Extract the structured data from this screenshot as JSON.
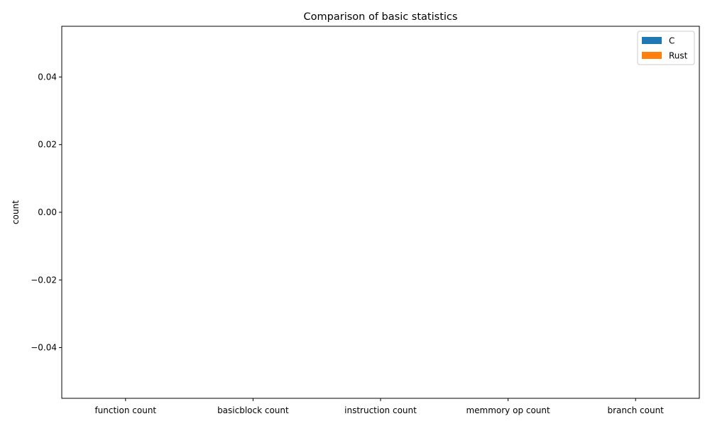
{
  "chart_data": {
    "type": "bar",
    "title": "Comparison of basic statistics",
    "xlabel": "",
    "ylabel": "count",
    "categories": [
      "function count",
      "basicblock count",
      "instruction count",
      "memmory op count",
      "branch count"
    ],
    "series": [
      {
        "name": "C",
        "color": "#1f77b4",
        "values": [
          0,
          0,
          0,
          0,
          0
        ]
      },
      {
        "name": "Rust",
        "color": "#ff7f0e",
        "values": [
          0,
          0,
          0,
          0,
          0
        ]
      }
    ],
    "ylim": [
      -0.055,
      0.055
    ],
    "yticks": [
      -0.04,
      -0.02,
      0.0,
      0.02,
      0.04
    ],
    "ytick_labels": [
      "−0.04",
      "−0.02",
      "0.00",
      "0.02",
      "0.04"
    ],
    "grid": false,
    "legend_position": "top-right"
  }
}
